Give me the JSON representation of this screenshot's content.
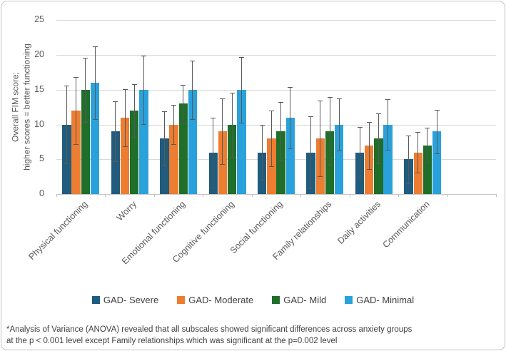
{
  "chart_data": {
    "type": "bar",
    "title": "",
    "xlabel": "",
    "ylabel": "Overall FIM score; higher scores = better functioning",
    "ylabel_lines": [
      "Overall FIM score;",
      "higher scores = better functioning"
    ],
    "ylim": [
      0,
      25
    ],
    "yticks": [
      0,
      5,
      10,
      15,
      20,
      25
    ],
    "grid": "horizontal",
    "legend_position": "bottom",
    "error_bars": true,
    "categories": [
      "Physical functioning",
      "Worry",
      "Emotional functioning",
      "Cognitive functioning",
      "Social functioning",
      "Family relationships",
      "Daily activities",
      "Communication"
    ],
    "series": [
      {
        "name": "GAD- Severe",
        "color": "#1f5c7d",
        "values": [
          10,
          9,
          8,
          6,
          6,
          6,
          6,
          5
        ],
        "errors": [
          5.6,
          4.3,
          3.9,
          5.0,
          4.0,
          5.2,
          3.6,
          3.4
        ]
      },
      {
        "name": "GAD- Moderate",
        "color": "#ed7d31",
        "values": [
          12,
          11,
          10,
          9,
          8,
          8,
          7,
          6
        ],
        "errors": [
          4.8,
          4.1,
          2.8,
          4.7,
          4.0,
          5.4,
          3.4,
          2.9
        ]
      },
      {
        "name": "GAD- Mild",
        "color": "#1f6e2a",
        "values": [
          15,
          12,
          13,
          10,
          9,
          9,
          8,
          7
        ],
        "errors": [
          4.6,
          3.8,
          2.7,
          4.6,
          4.2,
          4.9,
          3.6,
          2.5
        ]
      },
      {
        "name": "GAD- Minimal",
        "color": "#29a2db",
        "values": [
          16,
          15,
          15,
          15,
          11,
          10,
          10,
          9
        ],
        "errors": [
          5.2,
          4.9,
          4.2,
          4.7,
          4.4,
          3.7,
          3.6,
          3.1
        ]
      }
    ],
    "colors": {
      "gridline": "#d9d9d9",
      "axis_line": "#c6c6c6",
      "error_bar": "#595959",
      "axis_text": "#595959",
      "body_text": "#404040"
    }
  },
  "footnote": {
    "line1": "*Analysis of Variance (ANOVA) revealed that all subscales showed significant differences across anxiety groups",
    "line2": "at the p < 0.001 level except Family relationships which was significant at the p=0.002 level"
  }
}
